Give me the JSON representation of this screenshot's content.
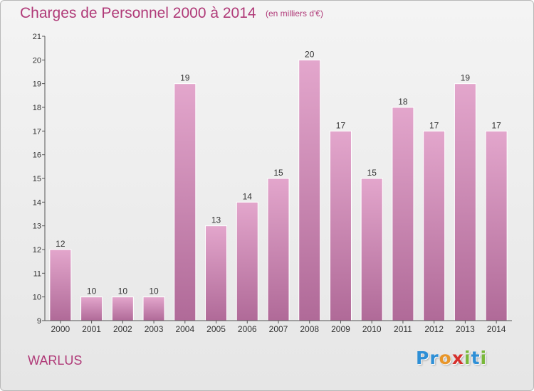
{
  "header": {
    "title": "Charges de Personnel 2000 à 2014",
    "subtitle": "(en milliers d'€)"
  },
  "footer": {
    "commune": "WARLUS",
    "logo_letters": [
      {
        "ch": "P",
        "color": "#2e8fd6"
      },
      {
        "ch": "r",
        "color": "#2e8fd6"
      },
      {
        "ch": "o",
        "color": "#e8962a"
      },
      {
        "ch": "x",
        "color": "#d6302c"
      },
      {
        "ch": "i",
        "color": "#79b83a"
      },
      {
        "ch": "t",
        "color": "#2e8fd6"
      },
      {
        "ch": "i",
        "color": "#79b83a"
      }
    ]
  },
  "chart_data": {
    "type": "bar",
    "categories": [
      "2000",
      "2001",
      "2002",
      "2003",
      "2004",
      "2005",
      "2006",
      "2007",
      "2008",
      "2009",
      "2010",
      "2011",
      "2012",
      "2013",
      "2014"
    ],
    "values": [
      12,
      10,
      10,
      10,
      19,
      13,
      14,
      15,
      20,
      17,
      15,
      18,
      17,
      19,
      17
    ],
    "data_labels": [
      "12",
      "10",
      "10",
      "10",
      "19",
      "13",
      "14",
      "15",
      "20",
      "17",
      "15",
      "18",
      "17",
      "19",
      "17"
    ],
    "y_ticks": [
      9,
      10,
      11,
      12,
      13,
      14,
      15,
      16,
      17,
      18,
      19,
      20,
      21
    ],
    "ylim": [
      9,
      21
    ],
    "grid": false,
    "bar_color_top": "#e3a6cc",
    "bar_color_bottom": "#b06a98",
    "axis_color": "#555555"
  }
}
